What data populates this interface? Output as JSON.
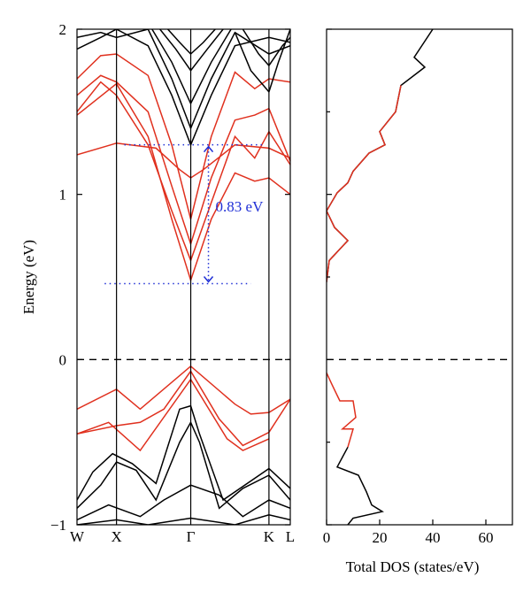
{
  "colors": {
    "black": "#000000",
    "red": "#e0301e",
    "blue": "#1f2fd6"
  },
  "chart_data": [
    {
      "type": "line",
      "subtype": "band-structure",
      "ylabel": "Energy (eV)",
      "ylim": [
        -1,
        2
      ],
      "y_ticks": [
        {
          "value": -1,
          "label": "−1"
        },
        {
          "value": 0,
          "label": "0"
        },
        {
          "value": 1,
          "label": "1"
        },
        {
          "value": 2,
          "label": "2"
        }
      ],
      "k_points": [
        {
          "label": "W",
          "k": 0.0
        },
        {
          "label": "X",
          "k": 0.5
        },
        {
          "label": "Γ",
          "k": 1.44
        },
        {
          "label": "K",
          "k": 2.43
        },
        {
          "label": "L",
          "k": 2.7
        }
      ],
      "xlim": [
        0,
        2.7
      ],
      "fermi_level": 0,
      "gap_annotation": {
        "label": "0.83 eV",
        "vbm_k_near": 1.44,
        "top": 1.3,
        "bottom": 0.46,
        "dotted_top_x": [
          0.6,
          2.35
        ],
        "dotted_bottom_x": [
          0.35,
          2.2
        ]
      },
      "bands": [
        {
          "color": "red",
          "k": [
            0,
            0.5,
            1.0,
            1.3,
            1.44,
            1.6,
            2.0,
            2.43,
            2.7
          ],
          "e": [
            1.24,
            1.31,
            1.28,
            1.15,
            1.1,
            1.15,
            1.3,
            1.28,
            1.22
          ]
        },
        {
          "color": "red",
          "k": [
            0,
            0.5,
            0.9,
            1.2,
            1.44,
            1.7,
            2.0,
            2.25,
            2.43,
            2.7
          ],
          "e": [
            1.48,
            1.67,
            1.35,
            0.85,
            0.48,
            0.85,
            1.13,
            1.08,
            1.1,
            1.0
          ]
        },
        {
          "color": "red",
          "k": [
            0,
            0.3,
            0.5,
            0.9,
            1.2,
            1.44,
            1.7,
            2.0,
            2.25,
            2.43,
            2.7
          ],
          "e": [
            1.5,
            1.68,
            1.6,
            1.3,
            0.9,
            0.6,
            0.95,
            1.35,
            1.22,
            1.38,
            1.18
          ]
        },
        {
          "color": "red",
          "k": [
            0,
            0.3,
            0.5,
            0.9,
            1.2,
            1.44,
            1.7,
            2.0,
            2.25,
            2.43,
            2.7
          ],
          "e": [
            1.6,
            1.72,
            1.68,
            1.5,
            1.05,
            0.7,
            1.1,
            1.45,
            1.48,
            1.52,
            1.2
          ]
        },
        {
          "color": "red",
          "k": [
            0,
            0.3,
            0.5,
            0.9,
            1.2,
            1.44,
            1.7,
            2.0,
            2.25,
            2.43,
            2.7
          ],
          "e": [
            1.7,
            1.84,
            1.85,
            1.72,
            1.3,
            0.85,
            1.35,
            1.74,
            1.64,
            1.7,
            1.68
          ]
        },
        {
          "color": "red",
          "k": [
            0,
            0.5,
            0.8,
            1.44,
            2.0,
            2.2,
            2.43,
            2.7
          ],
          "e": [
            -0.3,
            -0.18,
            -0.3,
            -0.04,
            -0.27,
            -0.33,
            -0.32,
            -0.24
          ]
        },
        {
          "color": "red",
          "k": [
            0,
            0.5,
            0.8,
            1.1,
            1.44,
            1.8,
            2.1,
            2.43,
            2.7
          ],
          "e": [
            -0.45,
            -0.4,
            -0.38,
            -0.3,
            -0.07,
            -0.36,
            -0.52,
            -0.44,
            -0.24
          ]
        },
        {
          "color": "red",
          "k": [
            0,
            0.4,
            0.8,
            1.44,
            1.9,
            2.1,
            2.43
          ],
          "e": [
            -0.45,
            -0.38,
            -0.55,
            -0.12,
            -0.48,
            -0.55,
            -0.48
          ]
        },
        {
          "color": "black",
          "k": [
            0,
            0.2,
            0.45,
            0.7,
            1.0,
            1.3,
            1.44,
            1.55,
            1.85,
            2.43,
            2.7
          ],
          "e": [
            -0.85,
            -0.68,
            -0.57,
            -0.63,
            -0.75,
            -0.3,
            -0.28,
            -0.45,
            -0.85,
            -0.66,
            -0.78
          ]
        },
        {
          "color": "black",
          "k": [
            0,
            0.3,
            0.5,
            0.75,
            1.0,
            1.3,
            1.44,
            1.55,
            1.8,
            2.1,
            2.43,
            2.7
          ],
          "e": [
            -0.9,
            -0.76,
            -0.62,
            -0.67,
            -0.85,
            -0.5,
            -0.38,
            -0.5,
            -0.9,
            -0.78,
            -0.7,
            -0.85
          ]
        },
        {
          "color": "black",
          "k": [
            0,
            0.4,
            0.8,
            1.1,
            1.44,
            1.8,
            2.1,
            2.43,
            2.7
          ],
          "e": [
            -0.97,
            -0.88,
            -0.95,
            -0.85,
            -0.76,
            -0.82,
            -0.95,
            -0.85,
            -0.9
          ]
        },
        {
          "color": "black",
          "k": [
            0,
            0.5,
            0.9,
            1.44,
            2.0,
            2.43,
            2.7
          ],
          "e": [
            -1.0,
            -0.97,
            -1.0,
            -0.96,
            -1.0,
            -0.94,
            -0.97
          ]
        },
        {
          "color": "black",
          "k": [
            0,
            0.3,
            0.5,
            0.9,
            1.2,
            1.44,
            1.7,
            2.0,
            2.43,
            2.7
          ],
          "e": [
            1.88,
            1.95,
            2.0,
            1.9,
            1.6,
            1.3,
            1.6,
            1.9,
            1.95,
            1.92
          ]
        },
        {
          "color": "black",
          "k": [
            0,
            0.3,
            0.5,
            0.9,
            1.2,
            1.44,
            1.7,
            2.0,
            2.43,
            2.7
          ],
          "e": [
            1.95,
            1.98,
            1.95,
            2.0,
            1.7,
            1.4,
            1.7,
            1.98,
            1.85,
            1.9
          ]
        },
        {
          "color": "black",
          "k": [
            0.95,
            1.2,
            1.44,
            1.7,
            1.95
          ],
          "e": [
            2.0,
            1.8,
            1.55,
            1.8,
            2.0
          ]
        },
        {
          "color": "black",
          "k": [
            1.05,
            1.25,
            1.44,
            1.65,
            1.85
          ],
          "e": [
            2.0,
            1.88,
            1.75,
            1.88,
            2.0
          ]
        },
        {
          "color": "black",
          "k": [
            1.15,
            1.3,
            1.44,
            1.6,
            1.75
          ],
          "e": [
            2.0,
            1.92,
            1.85,
            1.92,
            2.0
          ]
        },
        {
          "color": "black",
          "k": [
            2.0,
            2.2,
            2.43,
            2.55,
            2.7
          ],
          "e": [
            1.98,
            1.75,
            1.62,
            1.8,
            2.0
          ]
        },
        {
          "color": "black",
          "k": [
            2.1,
            2.3,
            2.43,
            2.6,
            2.7
          ],
          "e": [
            2.0,
            1.85,
            1.78,
            1.9,
            1.95
          ]
        }
      ]
    },
    {
      "type": "line",
      "subtype": "density-of-states",
      "xlabel": "Total DOS (states/eV)",
      "xlim": [
        0,
        70
      ],
      "ylim": [
        -1,
        2
      ],
      "x_ticks": [
        {
          "value": 0,
          "label": "0"
        },
        {
          "value": 20,
          "label": "20"
        },
        {
          "value": 40,
          "label": "40"
        },
        {
          "value": 60,
          "label": "60"
        }
      ],
      "fermi_level": 0,
      "series": [
        {
          "color": "black",
          "dos": [
            40,
            33,
            37,
            28,
            26,
            20,
            22,
            16,
            10,
            8,
            4,
            0,
            3,
            8,
            1,
            0
          ],
          "e": [
            2.0,
            1.83,
            1.77,
            1.66,
            1.5,
            1.38,
            1.3,
            1.25,
            1.14,
            1.07,
            1.01,
            0.9,
            0.8,
            0.72,
            0.6,
            0.47
          ]
        },
        {
          "color": "red",
          "dos": [
            28,
            26,
            20,
            22,
            16,
            10,
            8,
            4,
            0,
            3,
            8,
            1,
            0
          ],
          "e": [
            1.66,
            1.5,
            1.38,
            1.3,
            1.25,
            1.14,
            1.07,
            1.01,
            0.9,
            0.8,
            0.72,
            0.6,
            0.47
          ]
        },
        {
          "color": "red",
          "dos": [
            0,
            2,
            5,
            10,
            11,
            6,
            10,
            8
          ],
          "e": [
            -0.08,
            -0.15,
            -0.25,
            -0.25,
            -0.35,
            -0.42,
            -0.42,
            -0.53
          ]
        },
        {
          "color": "black",
          "dos": [
            8,
            4,
            12,
            15,
            17,
            21,
            10,
            8
          ],
          "e": [
            -0.53,
            -0.65,
            -0.7,
            -0.8,
            -0.88,
            -0.92,
            -0.96,
            -1.0
          ]
        }
      ]
    }
  ]
}
